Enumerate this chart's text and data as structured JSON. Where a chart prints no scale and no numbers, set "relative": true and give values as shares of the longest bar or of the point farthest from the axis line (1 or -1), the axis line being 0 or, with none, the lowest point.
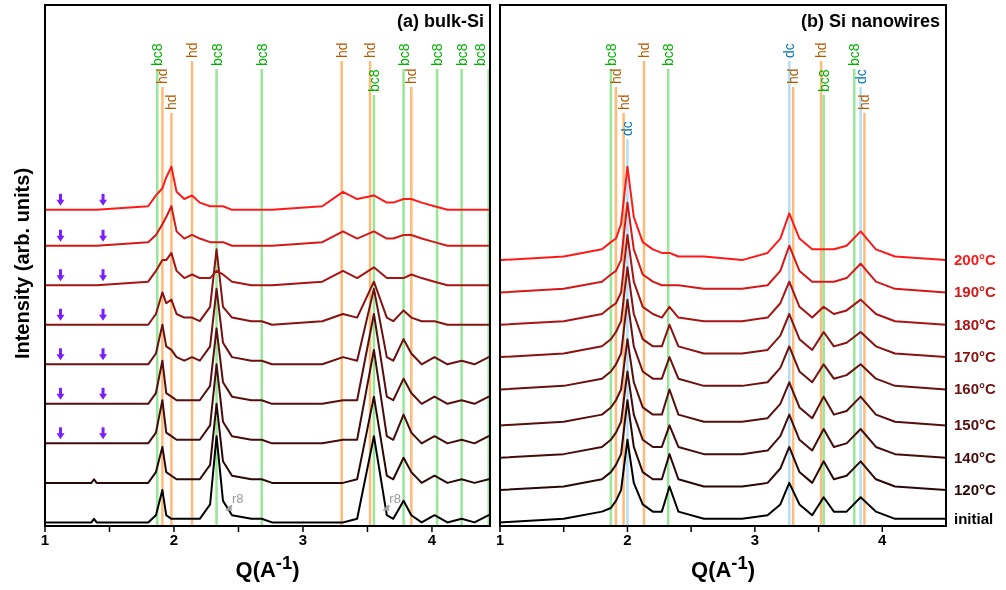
{
  "chart_data": [
    {
      "type": "line",
      "title": "(a) bulk-Si",
      "xlabel": "Q(A$^{-1}$)",
      "ylabel": "Intensity (arb. units)",
      "relative": true,
      "xlim": [
        1,
        4.45
      ],
      "xticks": [
        1,
        {
          "value": 1.5,
          "label": null
        },
        2,
        {
          "value": 2.5,
          "label": null
        },
        3,
        {
          "value": 3.5,
          "label": null
        },
        4
      ],
      "x": [
        1.0,
        1.36,
        1.38,
        1.4,
        1.8,
        1.86,
        1.91,
        1.94,
        1.98,
        2.02,
        2.08,
        2.14,
        2.2,
        2.28,
        2.33,
        2.38,
        2.45,
        2.6,
        2.68,
        2.76,
        3.15,
        3.31,
        3.42,
        3.55,
        3.65,
        3.7,
        3.78,
        3.84,
        3.92,
        4.02,
        4.12,
        4.23,
        4.33,
        4.44,
        4.45
      ],
      "series": [
        {
          "color": "#000000",
          "values": [
            0.01,
            0.01,
            0.02,
            0.01,
            0.01,
            0.03,
            0.1,
            0.03,
            0.02,
            0.02,
            0.02,
            0.02,
            0.02,
            0.06,
            0.25,
            0.07,
            0.03,
            0.02,
            0.02,
            0.01,
            0.01,
            0.01,
            0.02,
            0.25,
            0.03,
            0.02,
            0.07,
            0.03,
            0.01,
            0.03,
            0.01,
            0.02,
            0.01,
            0.03,
            0.03
          ]
        },
        {
          "color": "#2b0808",
          "values": [
            0.12,
            0.12,
            0.13,
            0.12,
            0.12,
            0.15,
            0.22,
            0.15,
            0.14,
            0.13,
            0.13,
            0.13,
            0.13,
            0.17,
            0.34,
            0.18,
            0.14,
            0.13,
            0.13,
            0.12,
            0.12,
            0.12,
            0.13,
            0.36,
            0.14,
            0.13,
            0.19,
            0.15,
            0.12,
            0.14,
            0.12,
            0.13,
            0.12,
            0.13,
            0.13
          ]
        },
        {
          "color": "#440c0c",
          "values": [
            0.23,
            0.23,
            0.23,
            0.23,
            0.23,
            0.26,
            0.35,
            0.26,
            0.25,
            0.24,
            0.24,
            0.24,
            0.24,
            0.28,
            0.45,
            0.29,
            0.25,
            0.24,
            0.24,
            0.23,
            0.23,
            0.24,
            0.24,
            0.49,
            0.25,
            0.24,
            0.31,
            0.26,
            0.23,
            0.25,
            0.23,
            0.24,
            0.23,
            0.25,
            0.25
          ]
        },
        {
          "color": "#580e0e",
          "values": [
            0.34,
            0.34,
            0.34,
            0.34,
            0.34,
            0.37,
            0.46,
            0.37,
            0.36,
            0.35,
            0.35,
            0.35,
            0.35,
            0.39,
            0.55,
            0.4,
            0.36,
            0.35,
            0.35,
            0.34,
            0.34,
            0.35,
            0.35,
            0.59,
            0.36,
            0.35,
            0.41,
            0.37,
            0.34,
            0.36,
            0.34,
            0.35,
            0.34,
            0.36,
            0.36
          ]
        },
        {
          "color": "#6c1010",
          "values": [
            0.45,
            0.45,
            0.45,
            0.45,
            0.45,
            0.48,
            0.56,
            0.5,
            0.49,
            0.47,
            0.46,
            0.47,
            0.46,
            0.5,
            0.66,
            0.51,
            0.47,
            0.46,
            0.46,
            0.45,
            0.45,
            0.47,
            0.46,
            0.66,
            0.47,
            0.46,
            0.52,
            0.48,
            0.45,
            0.47,
            0.45,
            0.46,
            0.45,
            0.47,
            0.47
          ]
        },
        {
          "color": "#881212",
          "values": [
            0.56,
            0.56,
            0.56,
            0.56,
            0.56,
            0.59,
            0.65,
            0.62,
            0.63,
            0.59,
            0.58,
            0.58,
            0.57,
            0.61,
            0.77,
            0.61,
            0.58,
            0.57,
            0.57,
            0.56,
            0.57,
            0.59,
            0.58,
            0.68,
            0.58,
            0.57,
            0.6,
            0.58,
            0.57,
            0.57,
            0.56,
            0.56,
            0.56,
            0.56,
            0.56
          ]
        },
        {
          "color": "#a81414",
          "values": [
            0.67,
            0.67,
            0.67,
            0.67,
            0.68,
            0.71,
            0.74,
            0.74,
            0.76,
            0.71,
            0.69,
            0.7,
            0.69,
            0.69,
            0.71,
            0.7,
            0.68,
            0.67,
            0.67,
            0.67,
            0.68,
            0.71,
            0.69,
            0.72,
            0.69,
            0.69,
            0.69,
            0.7,
            0.69,
            0.68,
            0.67,
            0.67,
            0.67,
            0.67,
            0.67
          ]
        },
        {
          "color": "#d41818",
          "values": [
            0.78,
            0.78,
            0.78,
            0.78,
            0.79,
            0.81,
            0.84,
            0.86,
            0.89,
            0.82,
            0.8,
            0.81,
            0.8,
            0.79,
            0.79,
            0.79,
            0.78,
            0.78,
            0.78,
            0.78,
            0.79,
            0.82,
            0.8,
            0.82,
            0.8,
            0.8,
            0.81,
            0.81,
            0.8,
            0.79,
            0.78,
            0.78,
            0.78,
            0.78,
            0.78
          ]
        },
        {
          "color": "#ff1a1a",
          "values": [
            0.88,
            0.88,
            0.88,
            0.88,
            0.89,
            0.92,
            0.94,
            0.97,
            1.0,
            0.93,
            0.91,
            0.92,
            0.9,
            0.89,
            0.89,
            0.89,
            0.88,
            0.88,
            0.88,
            0.88,
            0.89,
            0.93,
            0.91,
            0.92,
            0.9,
            0.9,
            0.91,
            0.91,
            0.9,
            0.89,
            0.88,
            0.88,
            0.88,
            0.88,
            0.88
          ]
        }
      ],
      "ref_lines": [
        {
          "axis": "x",
          "value": 1.87,
          "label": "bc8",
          "color": "#98e698"
        },
        {
          "axis": "x",
          "value": 1.91,
          "label": "hd",
          "color": "#ffbb77"
        },
        {
          "axis": "x",
          "value": 1.98,
          "label": "hd",
          "color": "#ffbb77"
        },
        {
          "axis": "x",
          "value": 2.14,
          "label": "hd",
          "color": "#ffbb77"
        },
        {
          "axis": "x",
          "value": 2.33,
          "label": "bc8",
          "color": "#98e698"
        },
        {
          "axis": "x",
          "value": 2.68,
          "label": "bc8",
          "color": "#98e698"
        },
        {
          "axis": "x",
          "value": 3.3,
          "label": "hd",
          "color": "#ffbb77"
        },
        {
          "axis": "x",
          "value": 3.52,
          "label": "hd",
          "color": "#ffbb77"
        },
        {
          "axis": "x",
          "value": 3.55,
          "label": "bc8",
          "color": "#98e698"
        },
        {
          "axis": "x",
          "value": 3.78,
          "label": "bc8",
          "color": "#98e698"
        },
        {
          "axis": "x",
          "value": 3.84,
          "label": "hd",
          "color": "#ffbb77"
        },
        {
          "axis": "x",
          "value": 4.04,
          "label": "bc8",
          "color": "#98e698"
        },
        {
          "axis": "x",
          "value": 4.23,
          "label": "bc8",
          "color": "#98e698"
        },
        {
          "axis": "x",
          "value": 4.44,
          "label": "bc8",
          "color": "#98e698"
        }
      ],
      "annotations": [
        {
          "text": "r8",
          "x": 2.38,
          "y": 0.04
        },
        {
          "text": "r8",
          "x": 3.6,
          "y": 0.04
        }
      ]
    },
    {
      "type": "line",
      "title": "(b) Si nanowires",
      "xlabel": "Q(A$^{-1}$)",
      "relative": true,
      "xlim": [
        1,
        4.5
      ],
      "xticks": [
        1,
        {
          "value": 1.5,
          "label": null
        },
        2,
        {
          "value": 2.5,
          "label": null
        },
        3,
        {
          "value": 3.5,
          "label": null
        },
        4
      ],
      "x": [
        1.0,
        1.5,
        1.8,
        1.87,
        1.91,
        1.95,
        2.0,
        2.05,
        2.12,
        2.2,
        2.27,
        2.33,
        2.4,
        2.6,
        2.9,
        3.1,
        3.2,
        3.27,
        3.35,
        3.45,
        3.54,
        3.62,
        3.72,
        3.83,
        3.95,
        4.1,
        4.5
      ],
      "series": [
        {
          "name": "initial",
          "color": "#000000",
          "values": [
            0.01,
            0.02,
            0.04,
            0.05,
            0.07,
            0.1,
            0.24,
            0.12,
            0.06,
            0.04,
            0.04,
            0.11,
            0.04,
            0.02,
            0.02,
            0.03,
            0.06,
            0.12,
            0.06,
            0.03,
            0.08,
            0.04,
            0.04,
            0.08,
            0.04,
            0.02,
            0.02
          ]
        },
        {
          "name": "120°C",
          "color": "#2b0808",
          "values": [
            0.1,
            0.11,
            0.13,
            0.15,
            0.17,
            0.2,
            0.35,
            0.22,
            0.15,
            0.13,
            0.13,
            0.2,
            0.13,
            0.11,
            0.11,
            0.12,
            0.16,
            0.22,
            0.15,
            0.12,
            0.18,
            0.13,
            0.14,
            0.18,
            0.13,
            0.11,
            0.1
          ]
        },
        {
          "name": "140°C",
          "color": "#440c0c",
          "values": [
            0.19,
            0.2,
            0.22,
            0.24,
            0.26,
            0.29,
            0.43,
            0.31,
            0.24,
            0.22,
            0.22,
            0.28,
            0.22,
            0.2,
            0.2,
            0.21,
            0.25,
            0.31,
            0.24,
            0.21,
            0.27,
            0.22,
            0.23,
            0.27,
            0.22,
            0.2,
            0.19
          ]
        },
        {
          "name": "150°C",
          "color": "#580e0e",
          "values": [
            0.28,
            0.29,
            0.31,
            0.33,
            0.35,
            0.38,
            0.52,
            0.4,
            0.33,
            0.31,
            0.31,
            0.38,
            0.31,
            0.29,
            0.29,
            0.3,
            0.34,
            0.4,
            0.33,
            0.3,
            0.36,
            0.31,
            0.32,
            0.36,
            0.31,
            0.29,
            0.28
          ]
        },
        {
          "name": "160°C",
          "color": "#6c1010",
          "values": [
            0.38,
            0.39,
            0.41,
            0.43,
            0.45,
            0.48,
            0.63,
            0.5,
            0.43,
            0.41,
            0.41,
            0.47,
            0.41,
            0.39,
            0.39,
            0.4,
            0.44,
            0.5,
            0.43,
            0.4,
            0.45,
            0.41,
            0.42,
            0.45,
            0.41,
            0.39,
            0.38
          ]
        },
        {
          "name": "170°C",
          "color": "#881212",
          "values": [
            0.47,
            0.48,
            0.5,
            0.52,
            0.54,
            0.57,
            0.72,
            0.59,
            0.52,
            0.5,
            0.5,
            0.56,
            0.5,
            0.48,
            0.48,
            0.49,
            0.53,
            0.59,
            0.52,
            0.49,
            0.54,
            0.5,
            0.51,
            0.54,
            0.5,
            0.48,
            0.47
          ]
        },
        {
          "name": "180°C",
          "color": "#a81414",
          "values": [
            0.56,
            0.57,
            0.59,
            0.61,
            0.62,
            0.65,
            0.81,
            0.68,
            0.61,
            0.59,
            0.58,
            0.61,
            0.58,
            0.57,
            0.57,
            0.58,
            0.62,
            0.68,
            0.61,
            0.58,
            0.61,
            0.59,
            0.6,
            0.63,
            0.59,
            0.57,
            0.56
          ]
        },
        {
          "name": "190°C",
          "color": "#d41818",
          "values": [
            0.65,
            0.66,
            0.68,
            0.7,
            0.71,
            0.74,
            0.9,
            0.77,
            0.7,
            0.68,
            0.67,
            0.67,
            0.67,
            0.66,
            0.66,
            0.67,
            0.71,
            0.78,
            0.71,
            0.68,
            0.68,
            0.68,
            0.69,
            0.73,
            0.68,
            0.66,
            0.65
          ]
        },
        {
          "name": "200°C",
          "color": "#ff1a1a",
          "values": [
            0.74,
            0.75,
            0.77,
            0.79,
            0.8,
            0.84,
            1.0,
            0.86,
            0.79,
            0.77,
            0.76,
            0.76,
            0.75,
            0.75,
            0.74,
            0.76,
            0.8,
            0.87,
            0.8,
            0.77,
            0.77,
            0.77,
            0.78,
            0.82,
            0.77,
            0.75,
            0.74
          ]
        }
      ],
      "ref_lines": [
        {
          "axis": "x",
          "value": 1.87,
          "label": "bc8",
          "color": "#98e698"
        },
        {
          "axis": "x",
          "value": 1.91,
          "label": "hd",
          "color": "#ffbb77"
        },
        {
          "axis": "x",
          "value": 1.97,
          "label": "hd",
          "color": "#ffbb77"
        },
        {
          "axis": "x",
          "value": 2.0,
          "label": "dc",
          "color": "#b3dff5"
        },
        {
          "axis": "x",
          "value": 2.13,
          "label": "hd",
          "color": "#ffbb77"
        },
        {
          "axis": "x",
          "value": 2.32,
          "label": "bc8",
          "color": "#98e698"
        },
        {
          "axis": "x",
          "value": 3.27,
          "label": "dc",
          "color": "#b3dff5"
        },
        {
          "axis": "x",
          "value": 3.3,
          "label": "hd",
          "color": "#ffbb77"
        },
        {
          "axis": "x",
          "value": 3.52,
          "label": "hd",
          "color": "#ffbb77"
        },
        {
          "axis": "x",
          "value": 3.54,
          "label": "bc8",
          "color": "#98e698"
        },
        {
          "axis": "x",
          "value": 3.78,
          "label": "bc8",
          "color": "#98e698"
        },
        {
          "axis": "x",
          "value": 3.83,
          "label": "dc",
          "color": "#b3dff5"
        },
        {
          "axis": "x",
          "value": 3.86,
          "label": "hd",
          "color": "#ffbb77"
        }
      ]
    }
  ]
}
